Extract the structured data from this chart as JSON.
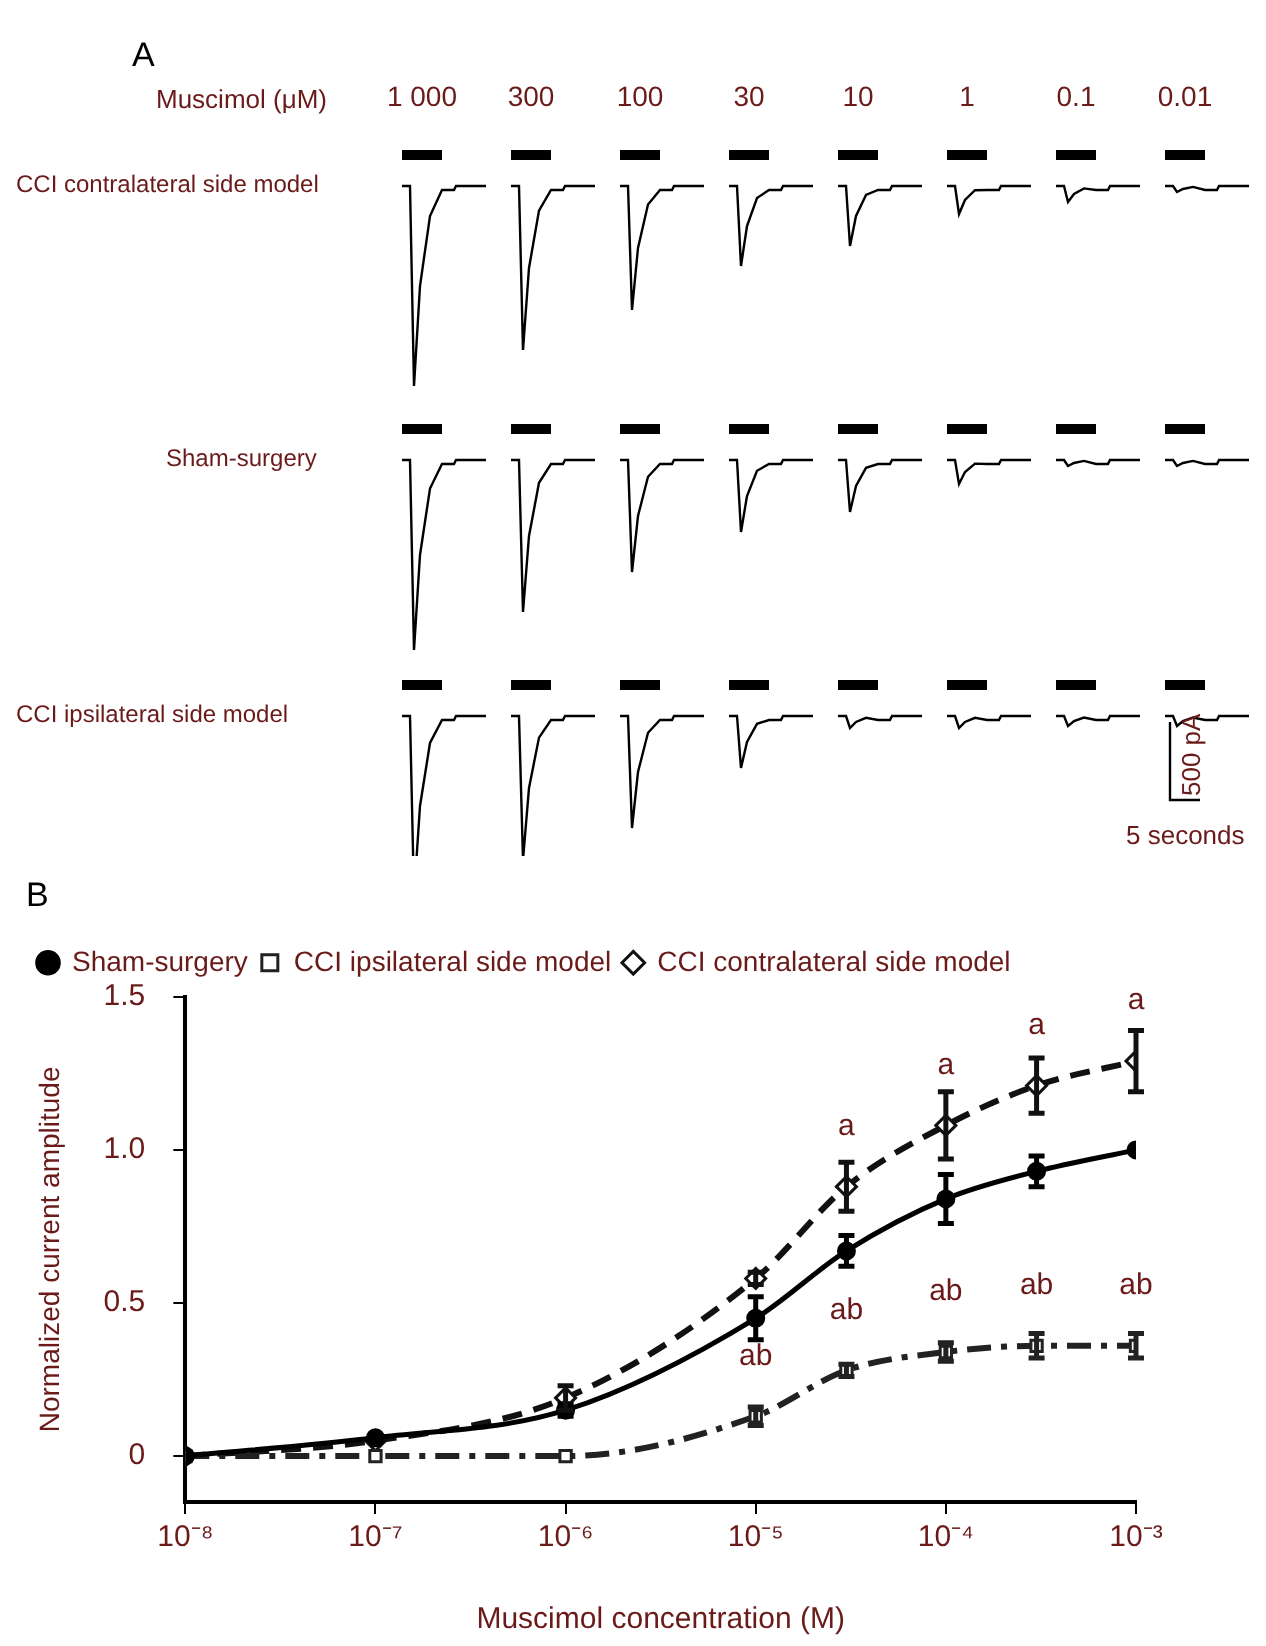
{
  "chart_data": [
    {
      "type": "other",
      "title": "A",
      "xlabel": "Muscimol (μM)",
      "categories": [
        "1 000",
        "300",
        "100",
        "30",
        "10",
        "1",
        "0.1",
        "0.01"
      ],
      "annotations": [
        "CCI contralateral side model",
        "Sham-surgery",
        "CCI ipsilateral side model",
        "500 pA",
        "5 seconds"
      ]
    },
    {
      "type": "line",
      "title": "B",
      "xlabel": "Muscimol concentration (M)",
      "ylabel": "Normalized current amplitude",
      "log": "x",
      "xlim": [
        1e-08,
        0.001
      ],
      "xticks": [
        {
          "value": 1e-08,
          "label": "10⁻⁸"
        },
        {
          "value": 1e-07,
          "label": "10⁻⁷"
        },
        {
          "value": 1e-06,
          "label": "10⁻⁶"
        },
        {
          "value": 1e-05,
          "label": "10⁻⁵"
        },
        {
          "value": 0.0001,
          "label": "10⁻⁴"
        },
        {
          "value": 0.001,
          "label": "10⁻³"
        }
      ],
      "ylim": [
        -0.15,
        1.5
      ],
      "yticks": [
        0,
        0.5,
        {
          "value": 1,
          "label": "1.0"
        },
        1.5
      ],
      "x": [
        1e-08,
        1e-07,
        1e-06,
        1e-05,
        3e-05,
        0.0001,
        0.0003,
        0.001
      ],
      "grid": false,
      "legend": "top left",
      "series": [
        {
          "name": "Sham-surgery",
          "color": "#000000",
          "marker": "circle",
          "line_style": "solid",
          "values": [
            0,
            0.06,
            0.15,
            0.45,
            0.67,
            0.84,
            0.93,
            1.0
          ],
          "errors": [
            null,
            null,
            0.02,
            0.07,
            0.05,
            0.08,
            0.05,
            null
          ]
        },
        {
          "name": "CCI ipsilateral side model",
          "color": "#222222",
          "marker": "square",
          "line_style": "dashdot",
          "values": [
            0,
            0,
            0,
            0.13,
            0.28,
            0.34,
            0.36,
            0.36
          ],
          "errors": [
            null,
            null,
            null,
            0.03,
            0.02,
            0.03,
            0.04,
            0.04
          ]
        },
        {
          "name": "CCI contralateral side model",
          "color": "#111111",
          "marker": "diamond",
          "line_style": "dashed",
          "values": [
            0,
            0.05,
            0.19,
            0.58,
            0.88,
            1.08,
            1.21,
            1.29
          ],
          "errors": [
            null,
            null,
            0.04,
            0.02,
            0.08,
            0.11,
            0.09,
            0.1
          ]
        }
      ],
      "annotations": [
        {
          "text": "ab",
          "x": 1e-05,
          "y": 0.13
        },
        {
          "text": "a",
          "x": 3e-05,
          "y": 0.88
        },
        {
          "text": "ab",
          "x": 3e-05,
          "y": 0.28
        },
        {
          "text": "a",
          "x": 0.0001,
          "y": 1.08
        },
        {
          "text": "ab",
          "x": 0.0001,
          "y": 0.34
        },
        {
          "text": "a",
          "x": 0.0003,
          "y": 1.21
        },
        {
          "text": "ab",
          "x": 0.0003,
          "y": 0.36
        },
        {
          "text": "a",
          "x": 0.001,
          "y": 1.29
        },
        {
          "text": "ab",
          "x": 0.001,
          "y": 0.36
        }
      ]
    }
  ]
}
